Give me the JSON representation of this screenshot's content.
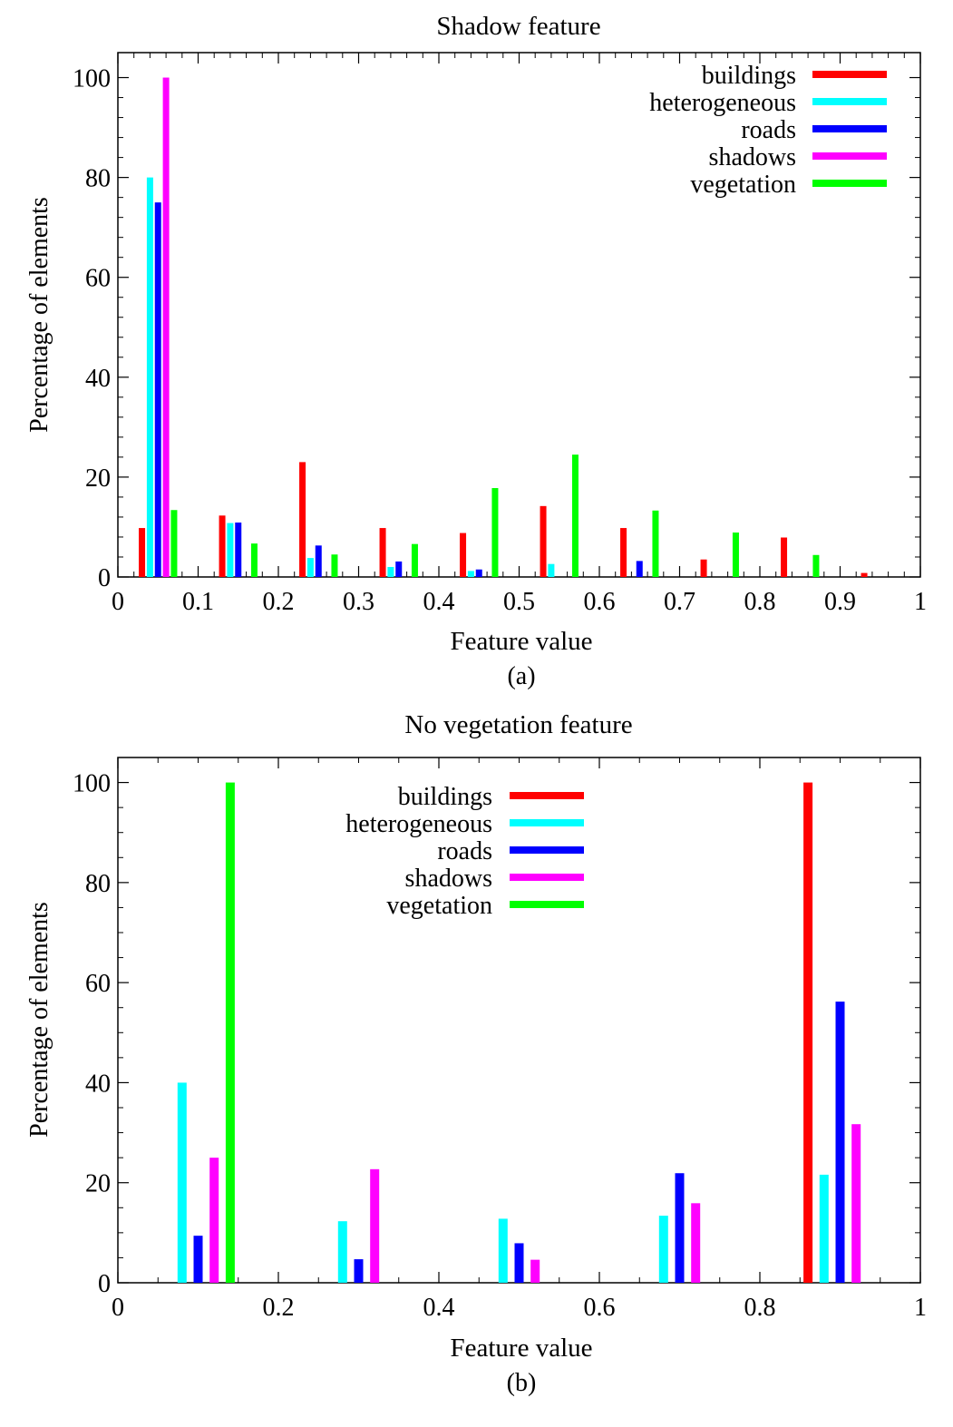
{
  "chart_data": [
    {
      "type": "bar",
      "title": "Shadow feature",
      "xlabel": "Feature value",
      "ylabel": "Percentage of elements",
      "caption": "(a)",
      "xlim": [
        0,
        1
      ],
      "ylim": [
        0,
        105
      ],
      "xticks": [
        0,
        0.1,
        0.2,
        0.3,
        0.4,
        0.5,
        0.6,
        0.7,
        0.8,
        0.9,
        1
      ],
      "xtick_labels": [
        "0",
        "0.1",
        "0.2",
        "0.3",
        "0.4",
        "0.5",
        "0.6",
        "0.7",
        "0.8",
        "0.9",
        "1"
      ],
      "yticks": [
        0,
        20,
        40,
        60,
        80,
        100
      ],
      "ytick_labels": [
        "0",
        "20",
        "40",
        "60",
        "80",
        "100"
      ],
      "legend_position": "top-right",
      "bin_width": 0.1,
      "x": [
        0.05,
        0.15,
        0.25,
        0.35,
        0.45,
        0.55,
        0.65,
        0.75,
        0.85,
        0.95
      ],
      "series": [
        {
          "name": "buildings",
          "color": "#ff0000",
          "values": [
            9.8,
            12.3,
            23,
            9.8,
            8.8,
            14.2,
            9.8,
            3.5,
            7.9,
            0.8
          ]
        },
        {
          "name": "heterogeneous",
          "color": "#00ffff",
          "values": [
            80,
            10.8,
            3.8,
            2,
            1.2,
            2.6,
            0,
            0,
            0,
            0
          ]
        },
        {
          "name": "roads",
          "color": "#0000ff",
          "values": [
            75,
            10.9,
            6.3,
            3.1,
            1.5,
            0,
            3.2,
            0,
            0,
            0
          ]
        },
        {
          "name": "shadows",
          "color": "#ff00ff",
          "values": [
            100,
            0,
            0,
            0,
            0,
            0,
            0,
            0,
            0,
            0
          ]
        },
        {
          "name": "vegetation",
          "color": "#00ff00",
          "values": [
            13.4,
            6.7,
            4.5,
            6.6,
            17.8,
            24.5,
            13.3,
            8.9,
            4.4,
            0
          ]
        }
      ]
    },
    {
      "type": "bar",
      "title": "No vegetation feature",
      "xlabel": "Feature value",
      "ylabel": "Percentage of elements",
      "caption": "(b)",
      "xlim": [
        0,
        1
      ],
      "ylim": [
        0,
        105
      ],
      "xticks": [
        0,
        0.2,
        0.4,
        0.6,
        0.8,
        1
      ],
      "xtick_labels": [
        "0",
        "0.2",
        "0.4",
        "0.6",
        "0.8",
        "1"
      ],
      "yticks": [
        0,
        20,
        40,
        60,
        80,
        100
      ],
      "ytick_labels": [
        "0",
        "20",
        "40",
        "60",
        "80",
        "100"
      ],
      "legend_position": "top-center",
      "bin_width": 0.2,
      "x": [
        0.1,
        0.3,
        0.5,
        0.7,
        0.9
      ],
      "series": [
        {
          "name": "buildings",
          "color": "#ff0000",
          "values": [
            0,
            0,
            0,
            0,
            100
          ]
        },
        {
          "name": "heterogeneous",
          "color": "#00ffff",
          "values": [
            40,
            12.3,
            12.8,
            13.4,
            21.6
          ]
        },
        {
          "name": "roads",
          "color": "#0000ff",
          "values": [
            9.4,
            4.7,
            7.9,
            21.9,
            56.2
          ]
        },
        {
          "name": "shadows",
          "color": "#ff00ff",
          "values": [
            25,
            22.7,
            4.6,
            15.9,
            31.7
          ]
        },
        {
          "name": "vegetation",
          "color": "#00ff00",
          "values": [
            100,
            0,
            0,
            0,
            0
          ]
        }
      ]
    }
  ]
}
